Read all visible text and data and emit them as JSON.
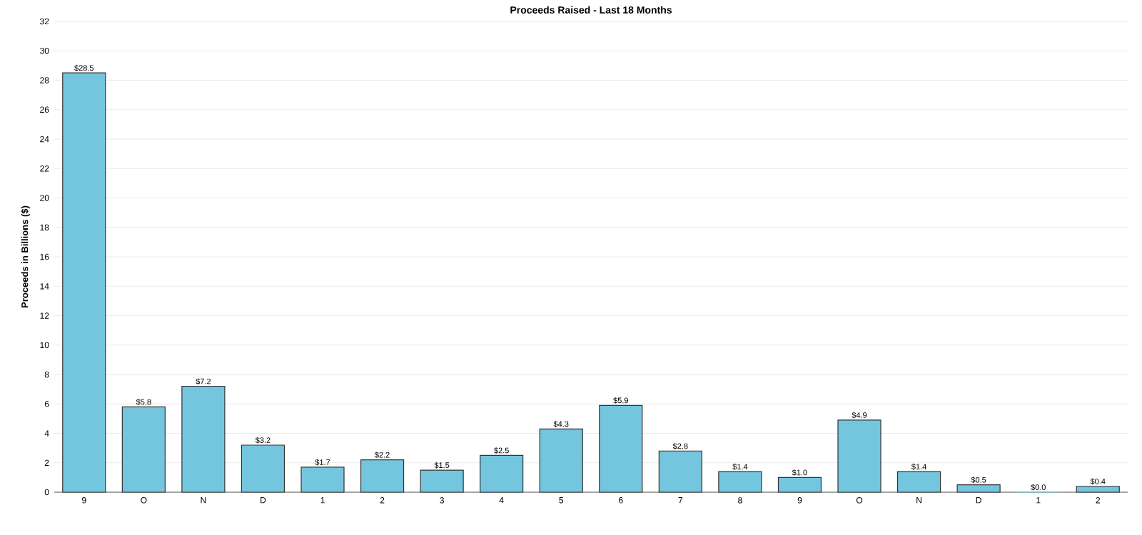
{
  "chart_data": {
    "type": "bar",
    "title": "Proceeds Raised - Last 18 Months",
    "ylabel": "Proceeds in Billions ($)",
    "categories": [
      "9",
      "O",
      "N",
      "D",
      "1",
      "2",
      "3",
      "4",
      "5",
      "6",
      "7",
      "8",
      "9",
      "O",
      "N",
      "D",
      "1",
      "2"
    ],
    "values": [
      28.5,
      5.8,
      7.2,
      3.2,
      1.7,
      2.2,
      1.5,
      2.5,
      4.3,
      5.9,
      2.8,
      1.4,
      1.0,
      4.9,
      1.4,
      0.5,
      0.0,
      0.4
    ],
    "value_labels": [
      "$28.5",
      "$5.8",
      "$7.2",
      "$3.2",
      "$1.7",
      "$2.2",
      "$1.5",
      "$2.5",
      "$4.3",
      "$5.9",
      "$2.8",
      "$1.4",
      "$1.0",
      "$4.9",
      "$1.4",
      "$0.5",
      "$0.0",
      "$0.4"
    ],
    "color": "#74c6de",
    "ylim": [
      0,
      32
    ],
    "yticks": [
      0,
      2,
      4,
      6,
      8,
      10,
      12,
      14,
      16,
      18,
      20,
      22,
      24,
      26,
      28,
      30,
      32
    ],
    "grid": "y"
  }
}
